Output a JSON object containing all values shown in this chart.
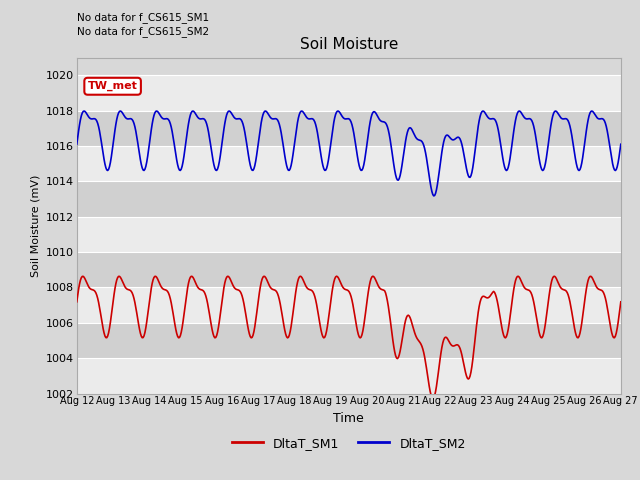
{
  "title": "Soil Moisture",
  "ylabel": "Soil Moisture (mV)",
  "xlabel": "Time",
  "ylim": [
    1002,
    1021
  ],
  "yticks": [
    1002,
    1004,
    1006,
    1008,
    1010,
    1012,
    1014,
    1016,
    1018,
    1020
  ],
  "note_line1": "No data for f_CS615_SM1",
  "note_line2": "No data for f_CS615_SM2",
  "tw_met_label": "TW_met",
  "legend_labels": [
    "DltaT_SM1",
    "DltaT_SM2"
  ],
  "line1_color": "#cc0000",
  "line2_color": "#0000cc",
  "fig_bg_color": "#d8d8d8",
  "band_light": "#ebebeb",
  "band_dark": "#d0d0d0",
  "xtick_labels": [
    "Aug 12",
    "Aug 13",
    "Aug 14",
    "Aug 15",
    "Aug 16",
    "Aug 17",
    "Aug 18",
    "Aug 19",
    "Aug 20",
    "Aug 21",
    "Aug 22",
    "Aug 23",
    "Aug 24",
    "Aug 25",
    "Aug 26",
    "Aug 27"
  ],
  "n_points": 600
}
